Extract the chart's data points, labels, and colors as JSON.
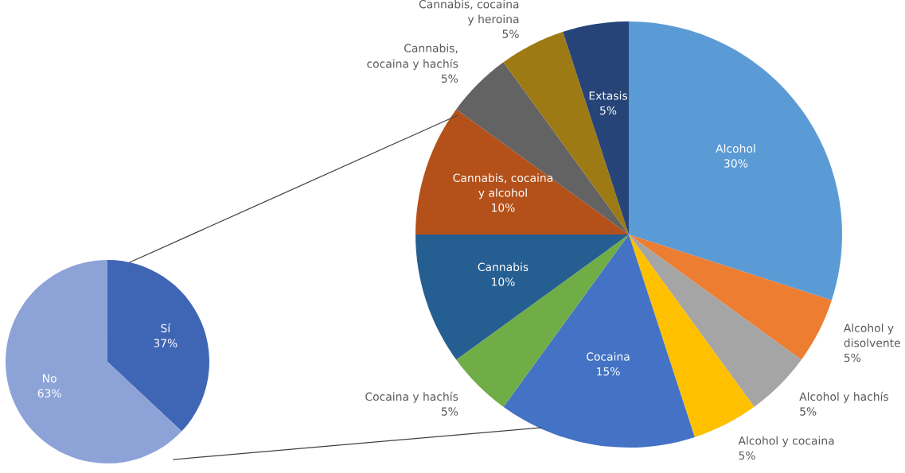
{
  "chart_data": [
    {
      "type": "pie",
      "categories": [
        "Sí",
        "No"
      ],
      "values": [
        37,
        63
      ],
      "colors": [
        "#3f65b5",
        "#8da3d8"
      ],
      "value_labels": [
        "37%",
        "63%"
      ]
    },
    {
      "type": "pie",
      "categories": [
        "Alcohol",
        "Alcohol y disolvente",
        "Alcohol y hachís",
        "Alcohol y cocaina",
        "Cocaina",
        "Cocaina y hachís",
        "Cannabis",
        "Cannabis, cocaina y alcohol",
        "Cannabis, cocaina y hachís",
        "Cannabis, cocaina y heroina",
        "Extasis"
      ],
      "values": [
        30,
        5,
        5,
        5,
        15,
        5,
        10,
        10,
        5,
        5,
        5
      ],
      "colors": [
        "#5b9bd5",
        "#ed7d31",
        "#a5a5a5",
        "#ffc000",
        "#4472c4",
        "#70ad47",
        "#255e91",
        "#b4501a",
        "#636363",
        "#9e7a14",
        "#264478"
      ],
      "value_labels": [
        "30%",
        "5%",
        "5%",
        "5%",
        "15%",
        "5%",
        "10%",
        "10%",
        "5%",
        "5%",
        "5%"
      ]
    }
  ]
}
